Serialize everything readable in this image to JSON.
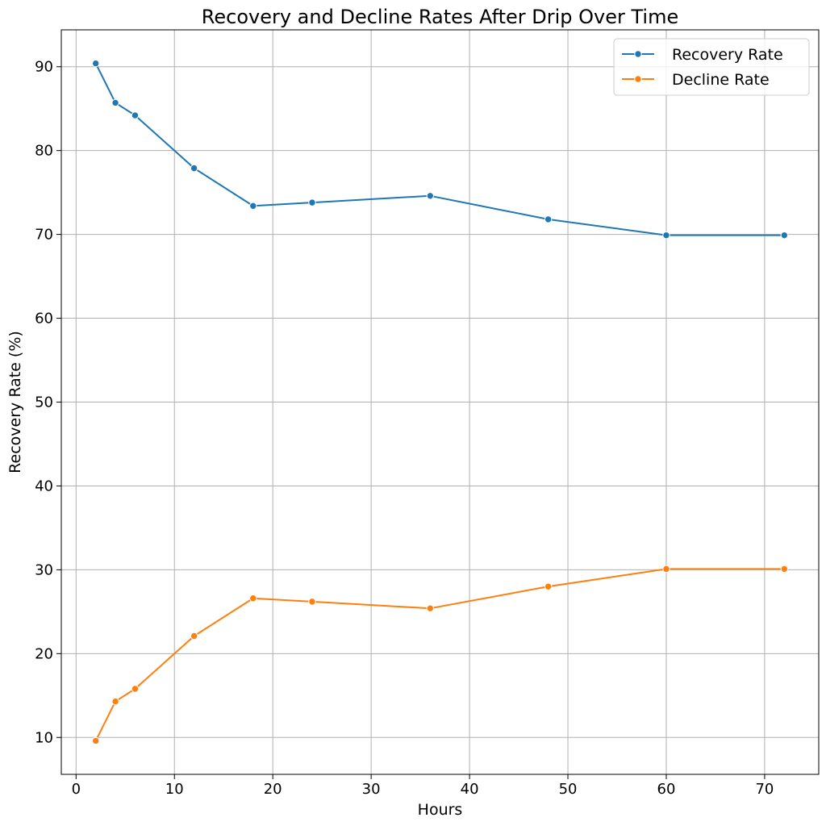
{
  "chart_data": {
    "type": "line",
    "title": "Recovery and Decline Rates After Drip Over Time",
    "xlabel": "Hours",
    "ylabel": "Recovery Rate (%)",
    "x": [
      2,
      4,
      6,
      12,
      18,
      24,
      36,
      48,
      60,
      72
    ],
    "series": [
      {
        "name": "Recovery Rate",
        "color": "#1f77b4",
        "values": [
          90.4,
          85.7,
          84.2,
          77.9,
          73.4,
          73.8,
          74.6,
          71.8,
          69.9,
          69.9
        ]
      },
      {
        "name": "Decline Rate",
        "color": "#ff7f0e",
        "values": [
          9.6,
          14.3,
          15.8,
          22.1,
          26.6,
          26.2,
          25.4,
          28.0,
          30.1,
          30.1
        ]
      }
    ],
    "xlim": [
      -1.5,
      75.5
    ],
    "ylim": [
      5.6,
      94.4
    ],
    "xticks": [
      0,
      10,
      20,
      30,
      40,
      50,
      60,
      70
    ],
    "yticks": [
      10,
      20,
      30,
      40,
      50,
      60,
      70,
      80,
      90
    ],
    "grid": true,
    "legend_position": "top-right",
    "markers": true
  }
}
